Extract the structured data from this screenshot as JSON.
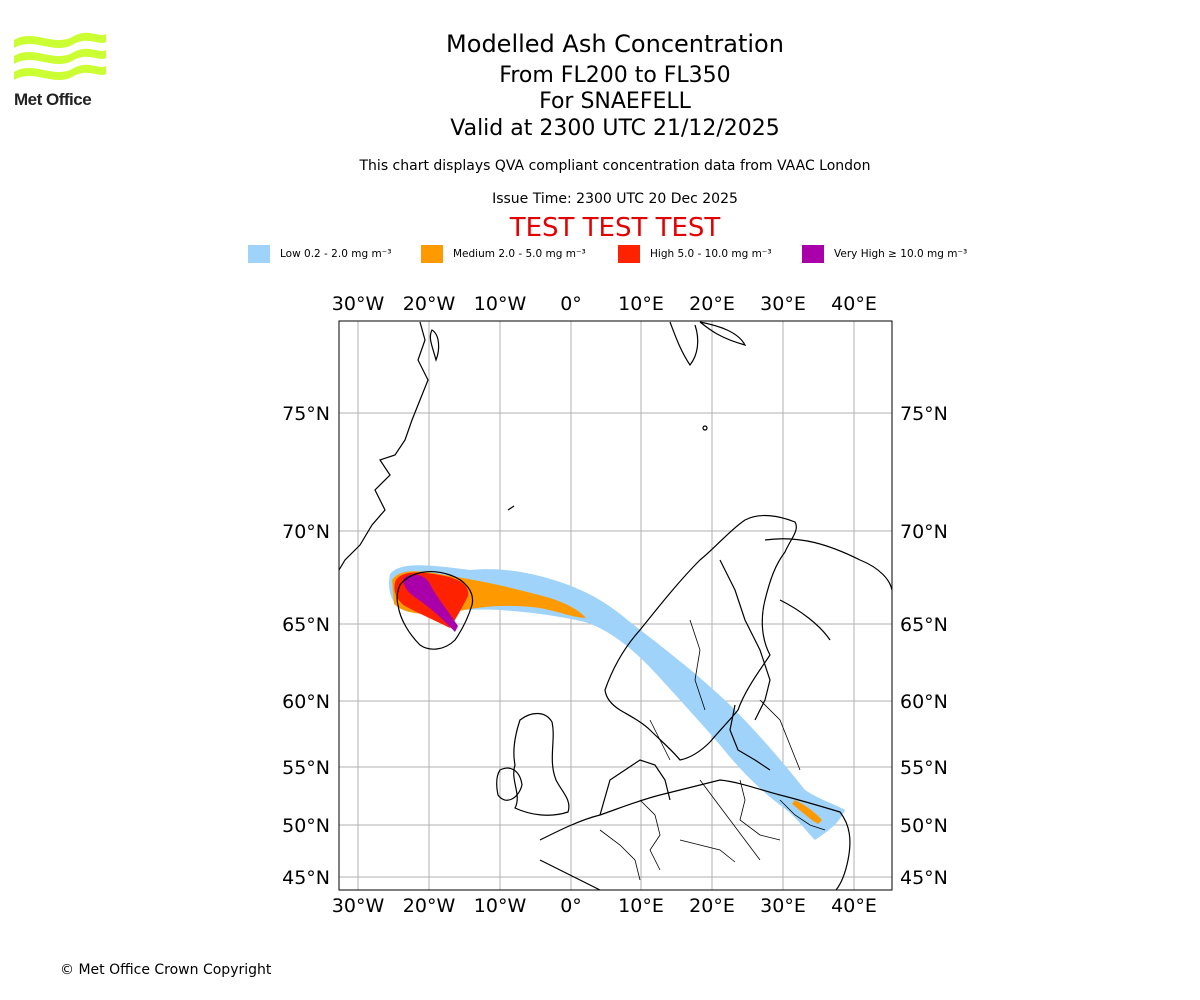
{
  "logo": {
    "text": "Met Office",
    "color": "#ccff33"
  },
  "header": {
    "title": "Modelled Ash Concentration",
    "levels": "From FL200 to FL350",
    "volcano": "For SNAEFELL",
    "valid": "Valid at 2300 UTC 21/12/2025",
    "subtitle": "This chart displays QVA compliant concentration data from VAAC London",
    "issue_time": "Issue Time: 2300 UTC 20 Dec 2025",
    "test_banner": "TEST TEST TEST"
  },
  "legend": [
    {
      "label": "Low 0.2 - 2.0 mg m⁻³",
      "color": "#a0d3fa"
    },
    {
      "label": "Medium 2.0 - 5.0 mg m⁻³",
      "color": "#ff9900"
    },
    {
      "label": "High 5.0 - 10.0 mg m⁻³",
      "color": "#ff2200"
    },
    {
      "label": "Very High ≥ 10.0 mg m⁻³",
      "color": "#aa00aa"
    }
  ],
  "map": {
    "lon_ticks": [
      "30°W",
      "20°W",
      "10°W",
      "0°",
      "10°E",
      "20°E",
      "30°E",
      "40°E"
    ],
    "lat_ticks": [
      "75°N",
      "70°N",
      "65°N",
      "60°N",
      "55°N",
      "50°N",
      "45°N"
    ]
  },
  "footer": {
    "copyright": "© Met Office Crown Copyright"
  }
}
